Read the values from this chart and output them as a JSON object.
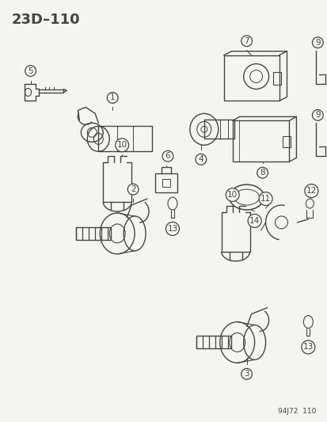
{
  "title": "23D–110",
  "footer": "94J72  110",
  "background_color": "#f5f5f0",
  "line_color": "#444444",
  "fig_width": 4.14,
  "fig_height": 5.33,
  "dpi": 100,
  "label_fontsize": 7.5,
  "title_fontsize": 13
}
